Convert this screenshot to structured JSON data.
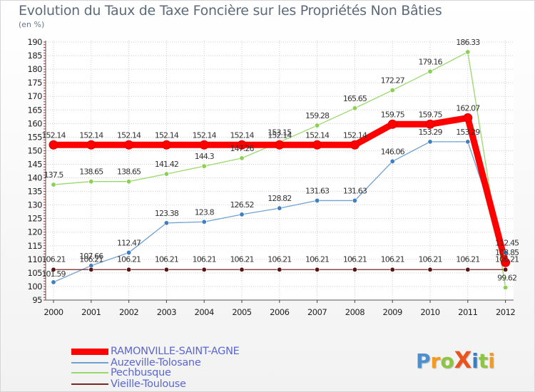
{
  "chart_data": {
    "type": "line",
    "title": "Evolution du Taux de Taxe Foncière sur les Propriétés Non Bâties",
    "subtitle": "(en %)",
    "xlabel": "",
    "ylabel": "",
    "ylim": [
      95,
      190
    ],
    "ystep": 5,
    "grid": true,
    "x": [
      "2000",
      "2001",
      "2002",
      "2003",
      "2004",
      "2005",
      "2006",
      "2007",
      "2008",
      "2009",
      "2010",
      "2011",
      "2012"
    ],
    "series": [
      {
        "name": "RAMONVILLE-SAINT-AGNE",
        "color": "#ff0000",
        "width": 9,
        "values": [
          152.14,
          152.14,
          152.14,
          152.14,
          152.14,
          152.14,
          152.14,
          152.14,
          152.14,
          159.75,
          159.75,
          162.07,
          108.85
        ],
        "labels": [
          "152.14",
          "152.14",
          "152.14",
          "152.14",
          "152.14",
          "152.14",
          "152.14",
          "152.14",
          "152.14",
          "159.75",
          "159.75",
          "162.07",
          "108.85"
        ]
      },
      {
        "name": "Auzeville-Tolosane",
        "color": "#6fa1d3",
        "width": 1.3,
        "values": [
          101.59,
          107.66,
          112.47,
          123.38,
          123.8,
          126.52,
          128.82,
          131.63,
          131.63,
          146.06,
          153.29,
          153.29,
          112.45
        ],
        "labels": [
          "101.59",
          "107.66",
          "112.47",
          "123.38",
          "123.8",
          "126.52",
          "128.82",
          "131.63",
          "131.63",
          "146.06",
          "153.29",
          "153.29",
          "112.45"
        ]
      },
      {
        "name": "Pechbusque",
        "color": "#99d96b",
        "width": 1.3,
        "values": [
          137.5,
          138.65,
          138.65,
          141.42,
          144.3,
          147.26,
          153.15,
          159.28,
          165.65,
          172.27,
          179.16,
          186.33,
          99.62
        ],
        "labels": [
          "137.5",
          "138.65",
          "138.65",
          "141.42",
          "144.3",
          "147.26",
          "153.15",
          "159.28",
          "165.65",
          "172.27",
          "179.16",
          "186.33",
          "99.62"
        ]
      },
      {
        "name": "Vieille-Toulouse",
        "color": "#7a2626",
        "width": 1.3,
        "values": [
          106.21,
          106.21,
          106.21,
          106.21,
          106.21,
          106.21,
          106.21,
          106.21,
          106.21,
          106.21,
          106.21,
          106.21,
          106.21
        ],
        "labels": [
          "106.21",
          "106.21",
          "106.21",
          "106.21",
          "106.21",
          "106.21",
          "106.21",
          "106.21",
          "106.21",
          "106.21",
          "106.21",
          "106.21",
          "106.21"
        ]
      }
    ],
    "legend": {
      "placement": "bottom-left",
      "items": [
        "RAMONVILLE-SAINT-AGNE",
        "Auzeville-Tolosane",
        "Pechbusque",
        "Vieille-Toulouse"
      ],
      "colors": [
        "#ff0000",
        "#6fa1d3",
        "#99d96b",
        "#7a2626"
      ]
    }
  },
  "logo": {
    "text": "ProXiti",
    "letters": [
      "P",
      "r",
      "o",
      "X",
      "i",
      "t",
      "i"
    ],
    "colors": [
      "#4d8fcf",
      "#f39a1f",
      "#8cc63f",
      "#e8541c",
      "#3a7ec2",
      "#8cc63f",
      "#f39a1f"
    ]
  }
}
